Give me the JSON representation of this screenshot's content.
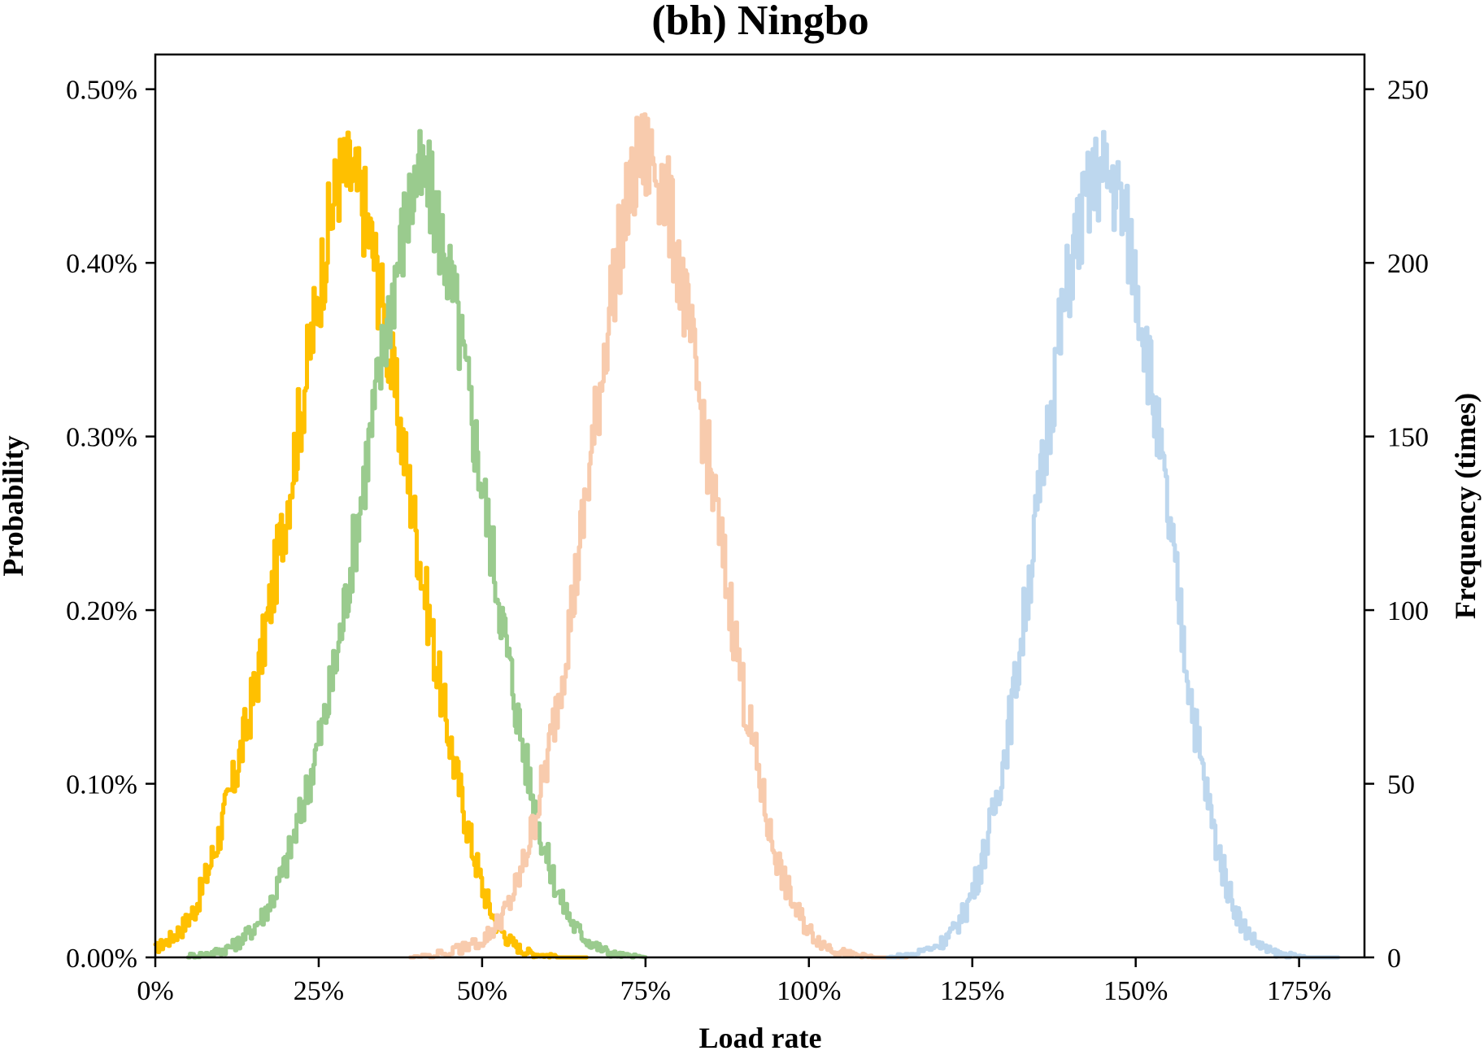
{
  "chart_data": {
    "type": "line",
    "title": "(bh) Ningbo",
    "xlabel": "Load rate",
    "ylabel": "Probability",
    "y2label": "Frequency (times)",
    "xlim": [
      0,
      1.85
    ],
    "ylim": [
      0,
      0.0052
    ],
    "y2lim": [
      0,
      260
    ],
    "x_ticks": [
      {
        "value": 0,
        "label": "0%"
      },
      {
        "value": 0.25,
        "label": "25%"
      },
      {
        "value": 0.5,
        "label": "50%"
      },
      {
        "value": 0.75,
        "label": "75%"
      },
      {
        "value": 1.0,
        "label": "100%"
      },
      {
        "value": 1.25,
        "label": "125%"
      },
      {
        "value": 1.5,
        "label": "150%"
      },
      {
        "value": 1.75,
        "label": "175%"
      }
    ],
    "y_ticks": [
      {
        "value": 0,
        "label": "0.00%"
      },
      {
        "value": 0.001,
        "label": "0.10%"
      },
      {
        "value": 0.002,
        "label": "0.20%"
      },
      {
        "value": 0.003,
        "label": "0.30%"
      },
      {
        "value": 0.004,
        "label": "0.40%"
      },
      {
        "value": 0.005,
        "label": "0.50%"
      }
    ],
    "y2_ticks": [
      {
        "value": 0,
        "label": "0"
      },
      {
        "value": 50,
        "label": "50"
      },
      {
        "value": 100,
        "label": "100"
      },
      {
        "value": 150,
        "label": "150"
      },
      {
        "value": 200,
        "label": "200"
      },
      {
        "value": 250,
        "label": "250"
      }
    ],
    "grid": false,
    "legend": "none",
    "series": [
      {
        "color": "#FFC000",
        "x": [
          0.0,
          0.02,
          0.04,
          0.06,
          0.08,
          0.1,
          0.12,
          0.14,
          0.16,
          0.18,
          0.2,
          0.22,
          0.24,
          0.26,
          0.28,
          0.3,
          0.32,
          0.34,
          0.36,
          0.38,
          0.4,
          0.42,
          0.44,
          0.46,
          0.48,
          0.5,
          0.52,
          0.54,
          0.56,
          0.58,
          0.6,
          0.62,
          0.64,
          0.66
        ],
        "y": [
          5e-05,
          0.0001,
          0.00017,
          0.00028,
          0.0005,
          0.00075,
          0.00102,
          0.00135,
          0.0017,
          0.00215,
          0.0026,
          0.0031,
          0.0036,
          0.0041,
          0.0045,
          0.0045,
          0.0043,
          0.0039,
          0.0034,
          0.0029,
          0.0024,
          0.0019,
          0.00145,
          0.00105,
          0.0007,
          0.0004,
          0.0002,
          0.0001,
          4e-05,
          2e-05,
          1e-05,
          0.0,
          0.0,
          0.0
        ]
      },
      {
        "color": "#9ACB8E",
        "x": [
          0.05,
          0.08,
          0.1,
          0.12,
          0.14,
          0.16,
          0.18,
          0.2,
          0.22,
          0.24,
          0.26,
          0.28,
          0.3,
          0.32,
          0.34,
          0.36,
          0.38,
          0.4,
          0.42,
          0.44,
          0.46,
          0.48,
          0.5,
          0.52,
          0.54,
          0.56,
          0.58,
          0.6,
          0.62,
          0.64,
          0.66,
          0.68,
          0.7,
          0.72,
          0.75
        ],
        "y": [
          1e-05,
          2e-05,
          4e-05,
          7e-05,
          0.00013,
          0.00022,
          0.00035,
          0.00055,
          0.0008,
          0.0011,
          0.0014,
          0.0018,
          0.0023,
          0.0028,
          0.0033,
          0.0038,
          0.0042,
          0.0045,
          0.0044,
          0.0041,
          0.0037,
          0.0032,
          0.0027,
          0.0022,
          0.0017,
          0.00125,
          0.00085,
          0.00055,
          0.00033,
          0.00018,
          0.0001,
          5e-05,
          2e-05,
          1e-05,
          0.0
        ]
      },
      {
        "color": "#F8CBAD",
        "x": [
          0.39,
          0.45,
          0.5,
          0.52,
          0.54,
          0.56,
          0.58,
          0.6,
          0.62,
          0.64,
          0.66,
          0.68,
          0.7,
          0.72,
          0.74,
          0.76,
          0.78,
          0.8,
          0.82,
          0.84,
          0.86,
          0.88,
          0.9,
          0.92,
          0.94,
          0.96,
          0.98,
          1.0,
          1.02,
          1.04,
          1.06,
          1.08,
          1.1,
          1.12,
          1.15
        ],
        "y": [
          0.0,
          3e-05,
          0.0001,
          0.00018,
          0.0003,
          0.0005,
          0.0008,
          0.00115,
          0.0016,
          0.0021,
          0.0027,
          0.0033,
          0.0039,
          0.0043,
          0.0046,
          0.0046,
          0.0044,
          0.004,
          0.0035,
          0.003,
          0.0025,
          0.002,
          0.0015,
          0.0011,
          0.0007,
          0.00045,
          0.00027,
          0.00015,
          8e-05,
          4e-05,
          2e-05,
          1e-05,
          0.0,
          0.0,
          0.0
        ]
      },
      {
        "color": "#BDD7EE",
        "x": [
          1.12,
          1.16,
          1.2,
          1.22,
          1.24,
          1.26,
          1.28,
          1.3,
          1.32,
          1.34,
          1.36,
          1.38,
          1.4,
          1.42,
          1.44,
          1.46,
          1.48,
          1.5,
          1.52,
          1.54,
          1.56,
          1.58,
          1.6,
          1.62,
          1.64,
          1.66,
          1.68,
          1.7,
          1.72,
          1.74,
          1.76,
          1.78,
          1.81
        ],
        "y": [
          0.0,
          2e-05,
          8e-05,
          0.00015,
          0.00028,
          0.0005,
          0.0008,
          0.0012,
          0.0017,
          0.0023,
          0.0029,
          0.0035,
          0.004,
          0.0043,
          0.0045,
          0.0045,
          0.0043,
          0.0039,
          0.0034,
          0.0028,
          0.0022,
          0.0016,
          0.0011,
          0.0007,
          0.0004,
          0.0002,
          0.0001,
          4e-05,
          2e-05,
          1e-05,
          0.0,
          0.0,
          0.0
        ]
      }
    ]
  }
}
